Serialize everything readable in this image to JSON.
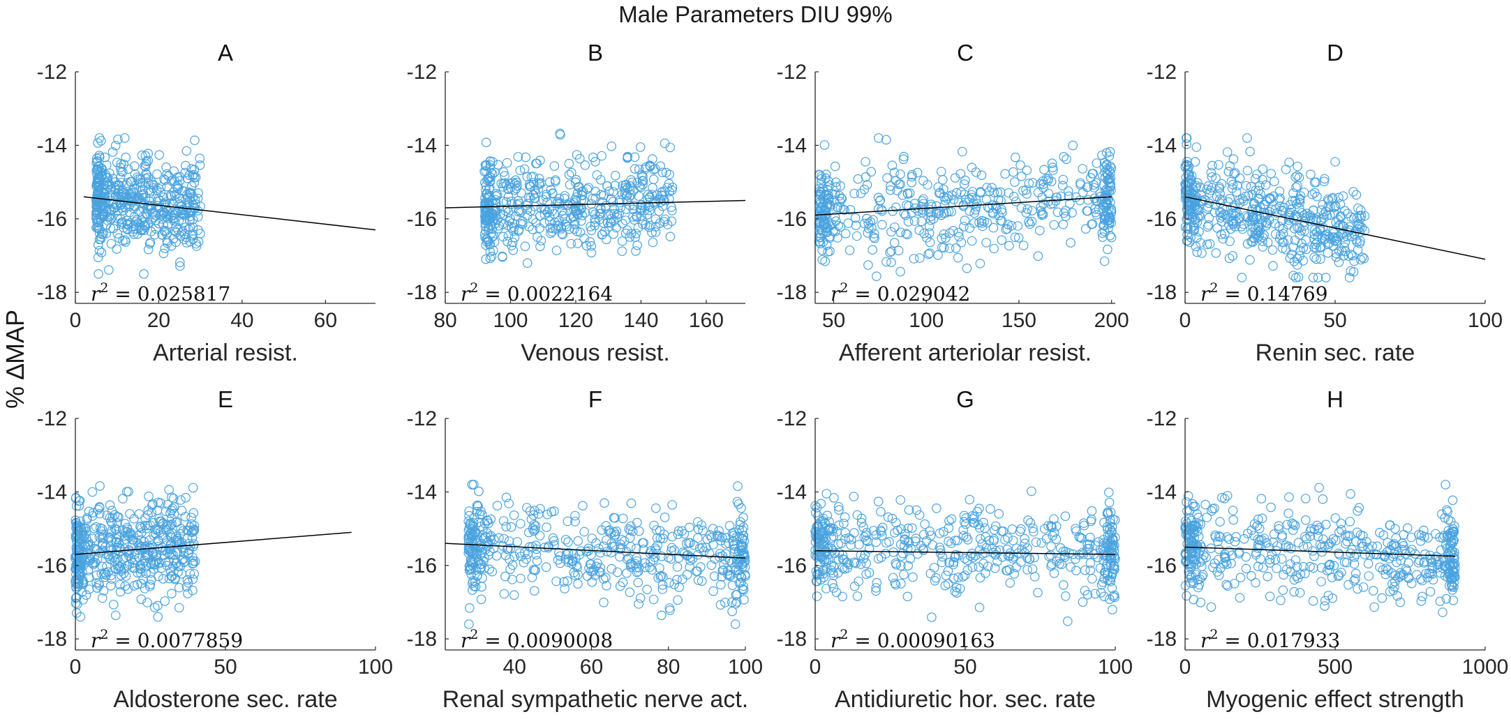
{
  "figure": {
    "suptitle": "Male Parameters DIU 99%",
    "ylabel": "% ∆MAP",
    "marker_color": "#4aa3df",
    "fit_color": "#000000"
  },
  "chart_data": [
    {
      "type": "scatter",
      "title": "A",
      "xlabel": "Arterial resist.",
      "xlim": [
        0,
        72
      ],
      "ylim": [
        -18.3,
        -12
      ],
      "xticks": [
        0,
        20,
        40,
        60
      ],
      "yticks": [
        -18,
        -16,
        -14,
        -12
      ],
      "fit": {
        "x": [
          2,
          72
        ],
        "y": [
          -15.4,
          -16.3
        ]
      },
      "r2": "0.025817",
      "cluster": {
        "x": [
          5,
          30
        ],
        "y": [
          -17.5,
          -13.8
        ]
      }
    },
    {
      "type": "scatter",
      "title": "B",
      "xlabel": "Venous resist.",
      "xlim": [
        80,
        172
      ],
      "ylim": [
        -18.3,
        -12
      ],
      "xticks": [
        80,
        100,
        120,
        140,
        160
      ],
      "yticks": [
        -18,
        -16,
        -14,
        -12
      ],
      "fit": {
        "x": [
          80,
          172
        ],
        "y": [
          -15.7,
          -15.5
        ]
      },
      "r2": "0.0022164",
      "cluster": {
        "x": [
          92,
          150
        ],
        "y": [
          -17.8,
          -13.5
        ]
      }
    },
    {
      "type": "scatter",
      "title": "C",
      "xlabel": "Afferent arteriolar resist.",
      "xlim": [
        40,
        202
      ],
      "ylim": [
        -18.3,
        -12
      ],
      "xticks": [
        50,
        100,
        150,
        200
      ],
      "yticks": [
        -18,
        -16,
        -14,
        -12
      ],
      "fit": {
        "x": [
          40,
          200
        ],
        "y": [
          -15.9,
          -15.4
        ]
      },
      "r2": "0.029042",
      "cluster": {
        "x": [
          42,
          200
        ],
        "y": [
          -17.6,
          -13.8
        ]
      }
    },
    {
      "type": "scatter",
      "title": "D",
      "xlabel": "Renin sec. rate",
      "xlim": [
        0,
        100
      ],
      "ylim": [
        -18.3,
        -12
      ],
      "xticks": [
        0,
        50,
        100
      ],
      "yticks": [
        -18,
        -16,
        -14,
        -12
      ],
      "fit": {
        "x": [
          0,
          100
        ],
        "y": [
          -15.4,
          -17.1
        ]
      },
      "r2": "0.14769",
      "cluster": {
        "x": [
          0,
          60
        ],
        "y": [
          -17.6,
          -13.8
        ]
      }
    },
    {
      "type": "scatter",
      "title": "E",
      "xlabel": "Aldosterone sec. rate",
      "xlim": [
        0,
        100
      ],
      "ylim": [
        -18.3,
        -12
      ],
      "xticks": [
        0,
        50,
        100
      ],
      "yticks": [
        -18,
        -16,
        -14,
        -12
      ],
      "fit": {
        "x": [
          0,
          92
        ],
        "y": [
          -15.7,
          -15.1
        ]
      },
      "r2": "0.0077859",
      "cluster": {
        "x": [
          0,
          40
        ],
        "y": [
          -17.4,
          -13.8
        ]
      }
    },
    {
      "type": "scatter",
      "title": "F",
      "xlabel": "Renal sympathetic nerve act.",
      "xlim": [
        22,
        100
      ],
      "ylim": [
        -18.3,
        -12
      ],
      "xticks": [
        40,
        60,
        80,
        100
      ],
      "yticks": [
        -18,
        -16,
        -14,
        -12
      ],
      "fit": {
        "x": [
          22,
          100
        ],
        "y": [
          -15.4,
          -15.8
        ]
      },
      "r2": "0.0090008",
      "cluster": {
        "x": [
          28,
          100
        ],
        "y": [
          -17.6,
          -13.8
        ]
      }
    },
    {
      "type": "scatter",
      "title": "G",
      "xlabel": "Antidiuretic hor. sec. rate",
      "xlim": [
        0,
        100
      ],
      "ylim": [
        -18.3,
        -12
      ],
      "xticks": [
        0,
        50,
        100
      ],
      "yticks": [
        -18,
        -16,
        -14,
        -12
      ],
      "fit": {
        "x": [
          0,
          100
        ],
        "y": [
          -15.6,
          -15.7
        ]
      },
      "r2": "0.00090163",
      "cluster": {
        "x": [
          0,
          100
        ],
        "y": [
          -17.6,
          -13.8
        ]
      }
    },
    {
      "type": "scatter",
      "title": "H",
      "xlabel": "Myogenic effect strength",
      "xlim": [
        0,
        1000
      ],
      "ylim": [
        -18.3,
        -12
      ],
      "xticks": [
        0,
        500,
        1000
      ],
      "yticks": [
        -18,
        -16,
        -14,
        -12
      ],
      "fit": {
        "x": [
          0,
          900
        ],
        "y": [
          -15.5,
          -15.75
        ]
      },
      "r2": "0.017933",
      "cluster": {
        "x": [
          0,
          900
        ],
        "y": [
          -17.6,
          -13.8
        ]
      }
    }
  ]
}
